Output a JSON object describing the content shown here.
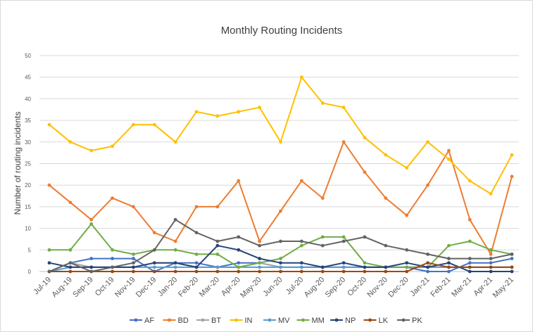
{
  "chart_data": {
    "type": "line",
    "title": "Monthly Routing Incidents",
    "xlabel": "",
    "ylabel": "Number of routing incidents",
    "ylim": [
      0,
      50
    ],
    "yticks": [
      0,
      5,
      10,
      15,
      20,
      25,
      30,
      35,
      40,
      45,
      50
    ],
    "grid": true,
    "legend_position": "bottom",
    "categories": [
      "Jul-19",
      "Aug-19",
      "Sep-19",
      "Oct-19",
      "Nov-19",
      "Dec-19",
      "Jan-20",
      "Feb-20",
      "Mar-20",
      "Apr-20",
      "May-20",
      "Jun-20",
      "Jul-20",
      "Aug-20",
      "Sep-20",
      "Oct-20",
      "Nov-20",
      "Dec-20",
      "Jan-21",
      "Feb-21",
      "Mar-21",
      "Apr-21",
      "May-21"
    ],
    "series": [
      {
        "name": "AF",
        "color": "#4472C4",
        "values": [
          0,
          2,
          3,
          3,
          3,
          0,
          2,
          2,
          1,
          2,
          2,
          1,
          1,
          1,
          1,
          1,
          1,
          1,
          0,
          0,
          2,
          2,
          3
        ]
      },
      {
        "name": "BD",
        "color": "#ED7D31",
        "values": [
          20,
          16,
          12,
          17,
          15,
          9,
          7,
          15,
          15,
          21,
          7,
          14,
          21,
          17,
          30,
          23,
          17,
          13,
          20,
          28,
          12,
          4,
          22
        ]
      },
      {
        "name": "BT",
        "color": "#A5A5A5",
        "values": [
          0,
          2,
          1,
          1,
          1,
          2,
          2,
          1,
          1,
          1,
          2,
          1,
          1,
          1,
          1,
          1,
          1,
          1,
          1,
          1,
          1,
          1,
          1
        ]
      },
      {
        "name": "IN",
        "color": "#FFC000",
        "values": [
          34,
          30,
          28,
          29,
          34,
          34,
          30,
          37,
          36,
          37,
          38,
          30,
          45,
          39,
          38,
          31,
          27,
          24,
          30,
          26,
          21,
          18,
          27
        ]
      },
      {
        "name": "MV",
        "color": "#5B9BD5",
        "values": [
          0,
          1,
          1,
          1,
          1,
          1,
          1,
          1,
          1,
          1,
          1,
          1,
          1,
          1,
          1,
          1,
          1,
          1,
          1,
          1,
          1,
          1,
          1
        ]
      },
      {
        "name": "MM",
        "color": "#70AD47",
        "values": [
          5,
          5,
          11,
          5,
          4,
          5,
          5,
          4,
          4,
          1,
          2,
          3,
          6,
          8,
          8,
          2,
          1,
          1,
          1,
          6,
          7,
          5,
          4
        ]
      },
      {
        "name": "NP",
        "color": "#264478",
        "values": [
          2,
          1,
          1,
          1,
          1,
          2,
          2,
          1,
          6,
          5,
          3,
          2,
          2,
          1,
          2,
          1,
          1,
          2,
          1,
          2,
          0,
          0,
          0
        ]
      },
      {
        "name": "LK",
        "color": "#9E480E",
        "values": [
          0,
          0,
          0,
          0,
          0,
          0,
          0,
          0,
          0,
          0,
          0,
          0,
          0,
          0,
          0,
          0,
          0,
          0,
          2,
          1,
          1,
          1,
          1
        ]
      },
      {
        "name": "PK",
        "color": "#636363",
        "values": [
          0,
          2,
          0,
          1,
          2,
          5,
          12,
          9,
          7,
          8,
          6,
          7,
          7,
          6,
          7,
          8,
          6,
          5,
          4,
          3,
          3,
          3,
          4
        ]
      }
    ]
  }
}
